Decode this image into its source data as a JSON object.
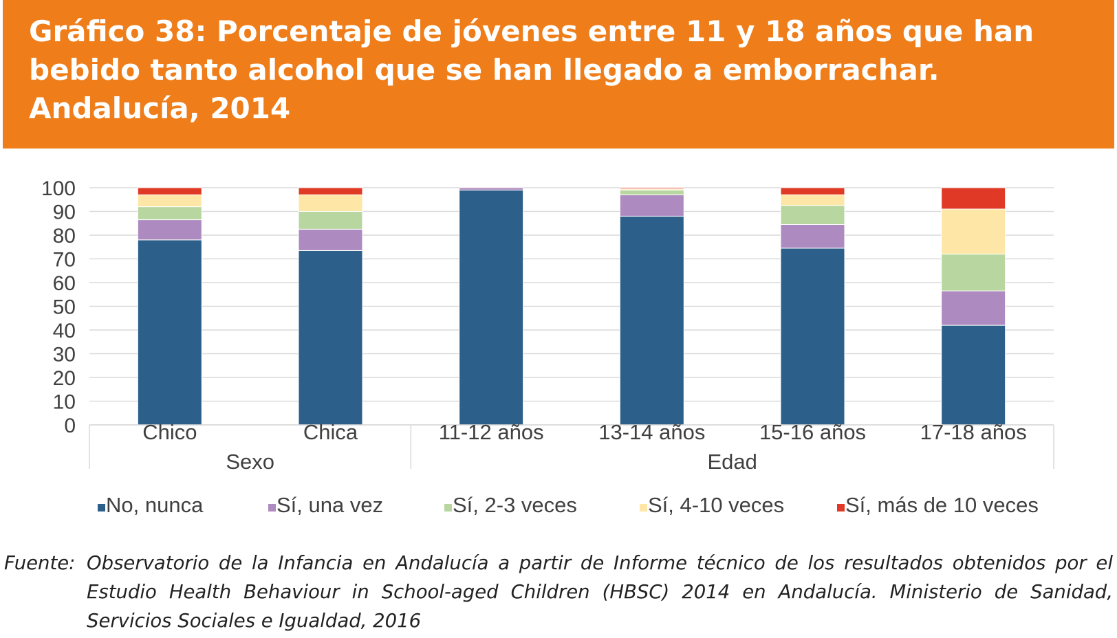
{
  "header": {
    "title": "Gráfico 38: Porcentaje de jóvenes entre 11 y 18 años que han bebido tanto alcohol que se han llegado a emborrachar. Andalucía, 2014"
  },
  "source": {
    "label": "Fuente:",
    "text": "Observatorio de la Infancia en Andalucía a partir de Informe técnico de los resultados obtenidos por el Estudio Health Behaviour in School-aged Children (HBSC) 2014 en Andalucía. Ministerio de Sanidad, Servicios Sociales e Igualdad, 2016"
  },
  "chart_data": {
    "type": "bar",
    "stacked": true,
    "categories": [
      "Chico",
      "Chica",
      "11-12 años",
      "13-14 años",
      "15-16 años",
      "17-18 años"
    ],
    "groups": [
      {
        "label": "Sexo",
        "categories": [
          "Chico",
          "Chica"
        ]
      },
      {
        "label": "Edad",
        "categories": [
          "11-12 años",
          "13-14 años",
          "15-16 años",
          "17-18 años"
        ]
      }
    ],
    "series": [
      {
        "name": "No, nunca",
        "color": "#2c5f8a",
        "values": [
          78,
          73.5,
          99,
          88,
          74.5,
          42
        ]
      },
      {
        "name": "Sí, una vez",
        "color": "#ad8abf",
        "values": [
          8.5,
          9,
          1,
          9,
          10,
          14.5
        ]
      },
      {
        "name": "Sí, 2-3 veces",
        "color": "#b8d7a0",
        "values": [
          5.5,
          7.5,
          0,
          2,
          8,
          15.5
        ]
      },
      {
        "name": "Sí, 4-10 veces",
        "color": "#fde6a6",
        "values": [
          5,
          7,
          0,
          0.5,
          4.5,
          19
        ]
      },
      {
        "name": "Sí, más de 10 veces",
        "color": "#e03a26",
        "values": [
          3,
          3,
          0,
          0.5,
          3,
          9
        ]
      }
    ],
    "ylim": [
      0,
      100
    ],
    "yticks": [
      0,
      10,
      20,
      30,
      40,
      50,
      60,
      70,
      80,
      90,
      100
    ],
    "grid": true,
    "legend": "bottom"
  }
}
